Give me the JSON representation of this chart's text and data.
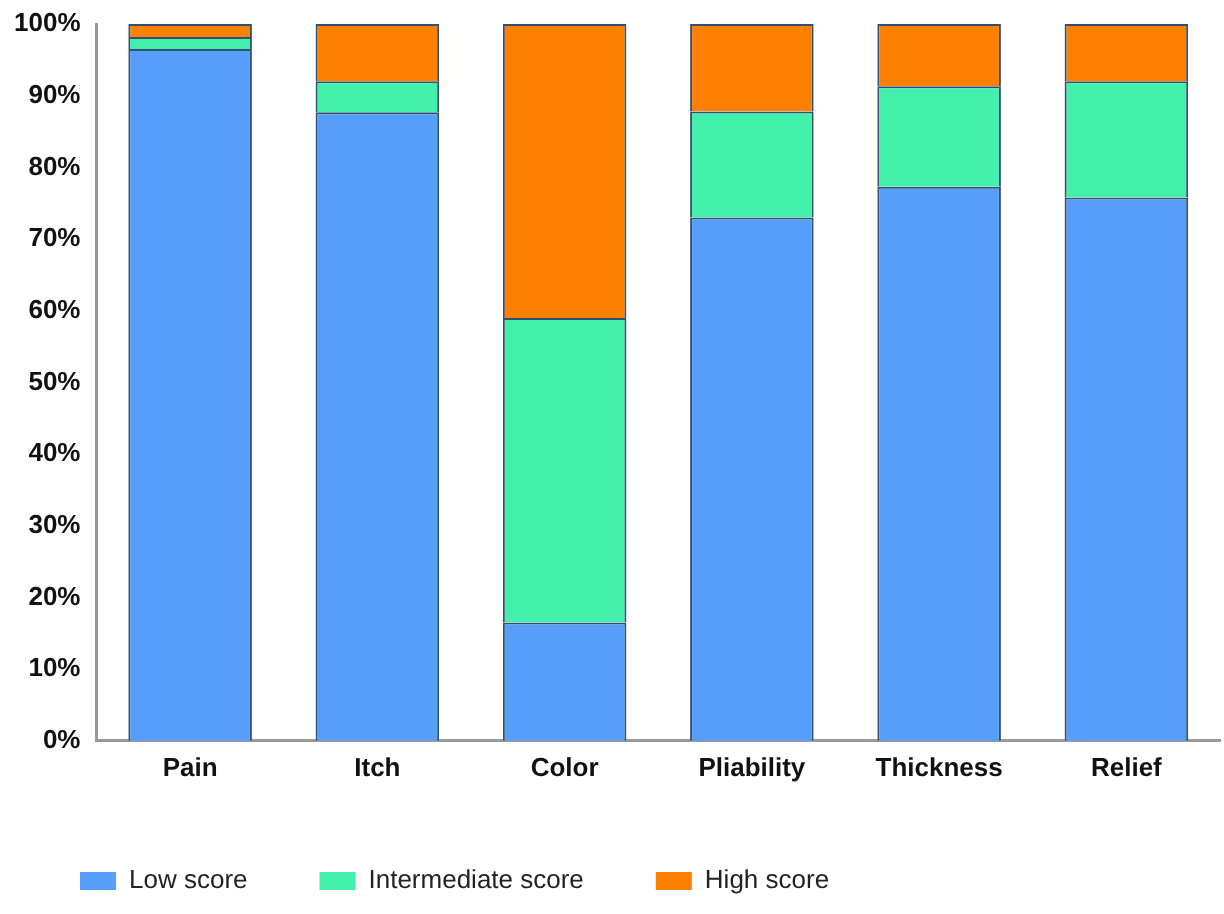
{
  "chart_data": {
    "type": "bar",
    "stacked": true,
    "categories": [
      "Pain",
      "Itch",
      "Color",
      "Pliability",
      "Thickness",
      "Relief"
    ],
    "series": [
      {
        "name": "Low score",
        "color": "#559ffa",
        "values": [
          96.5,
          87.7,
          16.5,
          73,
          77.3,
          75.8
        ]
      },
      {
        "name": "Intermediate score",
        "color": "#42efab",
        "values": [
          1.7,
          4.3,
          42.5,
          14.8,
          14,
          16.2
        ]
      },
      {
        "name": "High score",
        "color": "#fe8001",
        "values": [
          1.8,
          8,
          41,
          12.2,
          8.7,
          8
        ]
      }
    ],
    "ylim": [
      0,
      100
    ],
    "yticks": [
      {
        "value": 0,
        "label": "0%"
      },
      {
        "value": 10,
        "label": "10%"
      },
      {
        "value": 20,
        "label": "20%"
      },
      {
        "value": 30,
        "label": "30%"
      },
      {
        "value": 40,
        "label": "40%"
      },
      {
        "value": 50,
        "label": "50%"
      },
      {
        "value": 60,
        "label": "60%"
      },
      {
        "value": 70,
        "label": "70%"
      },
      {
        "value": 80,
        "label": "80%"
      },
      {
        "value": 90,
        "label": "90%"
      },
      {
        "value": 100,
        "label": "100%"
      }
    ],
    "grid": false,
    "legend": "bottom"
  }
}
